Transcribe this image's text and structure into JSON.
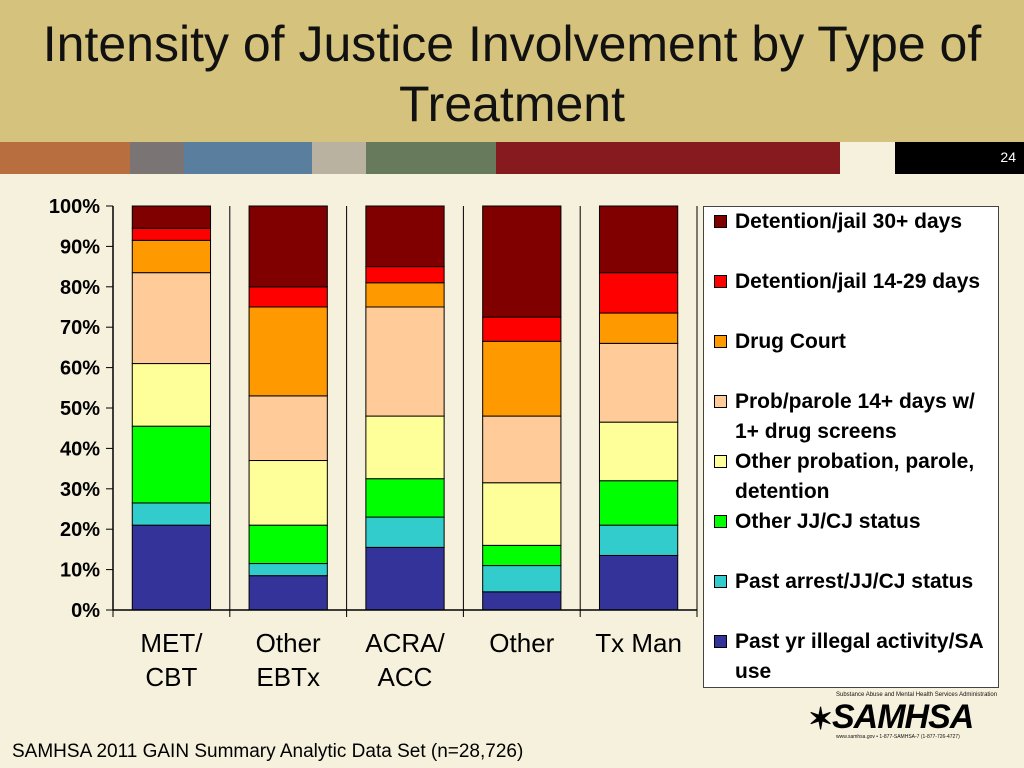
{
  "slide": {
    "title": "Intensity of Justice Involvement by Type of Treatment",
    "number": "24",
    "footer": "SAMHSA 2011 GAIN Summary Analytic Data Set (n=28,726)",
    "logo_text": "SAMHSA",
    "logo_subtext": "Substance Abuse and Mental Health Services Administration",
    "logo_foot": "www.samhsa.gov • 1-877-SAMHSA-7 (1-877-726-4727)",
    "header_color": "#D4C27D",
    "background_color": "#F6F1DC",
    "stripe_colors": [
      "#B86E3F",
      "#7A7474",
      "#5A7E9E",
      "#B9B2A0",
      "#687A5C",
      "#861A1E"
    ]
  },
  "chart_data": {
    "type": "bar",
    "stacked": true,
    "normalized": true,
    "categories": [
      "MET/\nCBT",
      "Other\nEBTx",
      "ACRA/\nACC",
      "Other",
      "Tx Man"
    ],
    "y_ticks": [
      "0%",
      "10%",
      "20%",
      "30%",
      "40%",
      "50%",
      "60%",
      "70%",
      "80%",
      "90%",
      "100%"
    ],
    "ylim": [
      0,
      100
    ],
    "legend_position": "right",
    "series": [
      {
        "name": "Past yr illegal activity/SA use",
        "color": "#333399",
        "values": [
          21,
          8.5,
          15.5,
          4.5,
          13.5
        ]
      },
      {
        "name": "Past arrest/JJ/CJ status",
        "color": "#33CCCC",
        "values": [
          5.5,
          3,
          7.5,
          6.5,
          7.5
        ]
      },
      {
        "name": "Other JJ/CJ status",
        "color": "#00FF00",
        "values": [
          19,
          9.5,
          9.5,
          5,
          11
        ]
      },
      {
        "name": "Other probation, parole, detention",
        "color": "#FFFF99",
        "values": [
          15.5,
          16,
          15.5,
          15.5,
          14.5
        ]
      },
      {
        "name": "Prob/parole 14+ days w/ 1+ drug screens",
        "color": "#FFCC99",
        "values": [
          22.5,
          16,
          27,
          16.5,
          19.5
        ]
      },
      {
        "name": "Drug Court",
        "color": "#FF9900",
        "values": [
          8,
          22,
          6,
          18.5,
          7.5
        ]
      },
      {
        "name": "Detention/jail 14-29 days",
        "color": "#FF0000",
        "values": [
          3,
          5,
          4,
          6,
          10
        ]
      },
      {
        "name": "Detention/jail 30+ days",
        "color": "#800000",
        "values": [
          5.5,
          20,
          15,
          27.5,
          16.5
        ]
      }
    ]
  }
}
